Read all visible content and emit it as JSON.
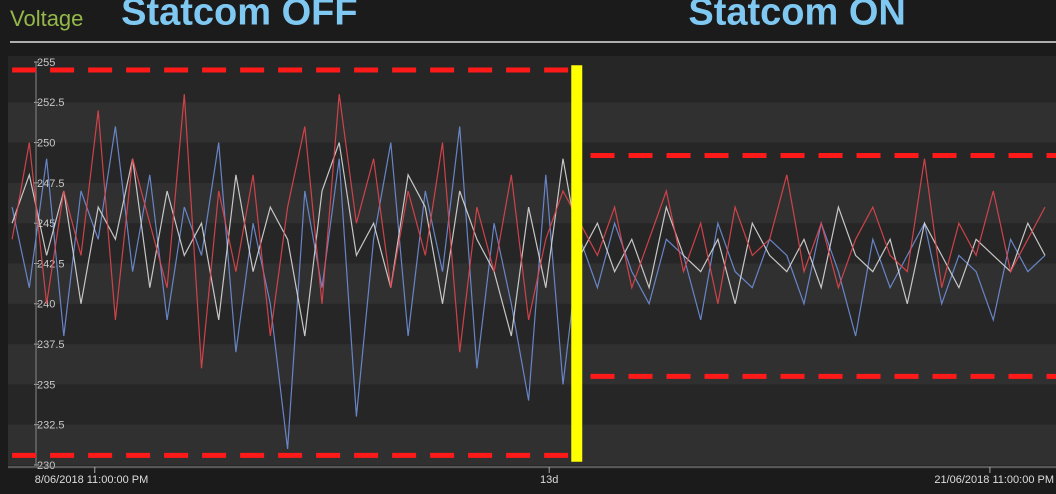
{
  "chart_data": {
    "type": "line",
    "title": "Voltage",
    "annotations": [
      {
        "text": "Statcom OFF",
        "x": 2.1,
        "y": 256.2
      },
      {
        "text": "Statcom ON",
        "x": 10.2,
        "y": 256.2
      }
    ],
    "xlim": [
      -1.26,
      13.96
    ],
    "ylim": [
      230,
      255
    ],
    "yticks": [
      230,
      232.5,
      235,
      237.5,
      240,
      242.5,
      245,
      247.5,
      250,
      252.5,
      255
    ],
    "xticks": [
      {
        "value": 0,
        "label": "8/06/2018 11:00:00 PM"
      },
      {
        "value": 6.6,
        "label": "13d"
      },
      {
        "value": 13,
        "label": "21/06/2018 11:00:00 PM"
      }
    ],
    "x": [
      -1.2,
      -0.95,
      -0.7,
      -0.45,
      -0.2,
      0.05,
      0.3,
      0.55,
      0.8,
      1.05,
      1.3,
      1.55,
      1.8,
      2.05,
      2.3,
      2.55,
      2.8,
      3.05,
      3.3,
      3.55,
      3.8,
      4.05,
      4.3,
      4.55,
      4.8,
      5.05,
      5.3,
      5.55,
      5.8,
      6.05,
      6.3,
      6.55,
      6.8,
      7.05,
      7.3,
      7.55,
      7.8,
      8.05,
      8.3,
      8.55,
      8.8,
      9.05,
      9.3,
      9.55,
      9.8,
      10.05,
      10.3,
      10.55,
      10.8,
      11.05,
      11.3,
      11.55,
      11.8,
      12.05,
      12.3,
      12.55,
      12.8,
      13.05,
      13.3,
      13.55,
      13.8
    ],
    "series": [
      {
        "color": "#6f8fd8",
        "values": [
          246,
          241,
          249,
          238,
          247,
          244,
          251,
          242,
          248,
          239,
          246,
          243,
          250,
          237,
          245,
          240,
          231,
          247,
          241,
          249,
          233,
          244,
          250,
          238,
          247,
          242,
          251,
          236,
          245,
          240,
          234,
          248,
          235,
          244,
          241,
          245,
          242,
          240,
          244,
          243,
          239,
          245,
          242,
          241,
          244,
          243,
          240,
          245,
          242,
          238,
          244,
          241,
          243,
          245,
          240,
          243,
          242,
          239,
          244,
          242,
          243
        ]
      },
      {
        "color": "#d8d8d8",
        "values": [
          245,
          248,
          243,
          247,
          240,
          246,
          244,
          249,
          241,
          247,
          243,
          245,
          239,
          248,
          242,
          246,
          244,
          238,
          247,
          250,
          243,
          245,
          241,
          248,
          246,
          240,
          247,
          244,
          242,
          238,
          246,
          241,
          249,
          243,
          245,
          242,
          244,
          241,
          246,
          243,
          242,
          244,
          240,
          245,
          243,
          242,
          244,
          241,
          246,
          243,
          242,
          244,
          240,
          245,
          243,
          241,
          244,
          243,
          242,
          245,
          243
        ]
      },
      {
        "color": "#e0464e",
        "values": [
          244,
          250,
          240,
          247,
          243,
          252,
          239,
          249,
          245,
          241,
          253,
          236,
          247,
          242,
          248,
          238,
          246,
          251,
          240,
          253,
          245,
          249,
          241,
          247,
          243,
          250,
          237,
          246,
          242,
          248,
          239,
          244,
          247,
          245,
          243,
          246,
          241,
          244,
          247,
          242,
          245,
          240,
          246,
          243,
          244,
          248,
          242,
          245,
          241,
          244,
          246,
          243,
          242,
          249,
          241,
          245,
          243,
          247,
          242,
          244,
          246
        ]
      }
    ],
    "reference_lines": [
      {
        "y": 254.5,
        "x": [
          -1.2,
          6.9
        ],
        "color": "#ff1a1a"
      },
      {
        "y": 230.6,
        "x": [
          -1.2,
          6.9
        ],
        "color": "#ff1a1a"
      },
      {
        "y": 249.2,
        "x": [
          7.2,
          13.96
        ],
        "color": "#ff1a1a"
      },
      {
        "y": 235.5,
        "x": [
          7.2,
          13.96
        ],
        "color": "#ff1a1a"
      }
    ],
    "vline": {
      "x": 7.0,
      "y": [
        254.8,
        230.2
      ],
      "color": "#ffff00"
    },
    "grid": true
  }
}
